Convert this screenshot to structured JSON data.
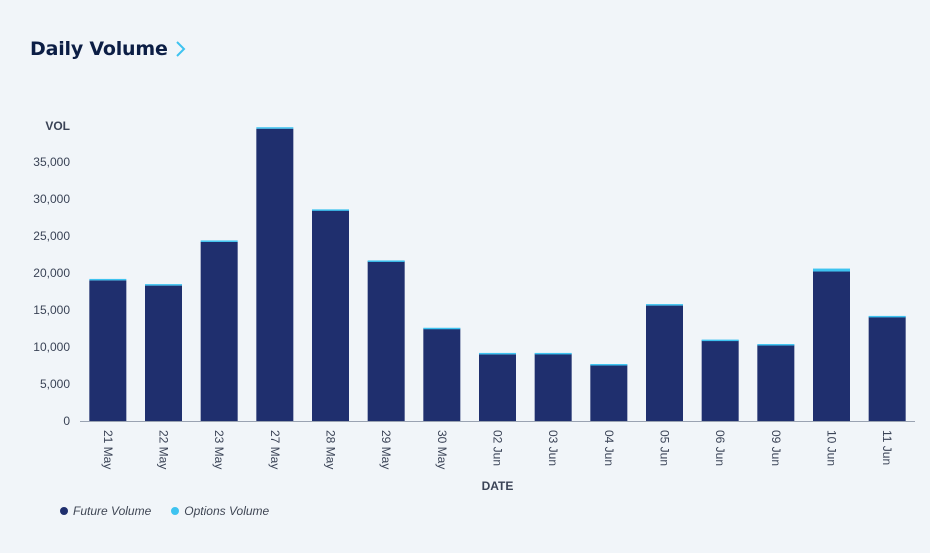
{
  "header": {
    "title": "Daily Volume",
    "chevron_icon": "chevron-right-icon"
  },
  "colors": {
    "future": "#1f2f6e",
    "options": "#3ec3f0",
    "title": "#0c1e45",
    "axis": "#3a4356"
  },
  "chart_data": {
    "type": "bar",
    "stacked": true,
    "ylabel": "VOL",
    "xlabel": "DATE",
    "ylim": [
      0,
      40000
    ],
    "yticks": [
      "0",
      "5,000",
      "10,000",
      "15,000",
      "20,000",
      "25,000",
      "30,000",
      "35,000"
    ],
    "ytick_values": [
      0,
      5000,
      10000,
      15000,
      20000,
      25000,
      30000,
      35000
    ],
    "categories": [
      "21 May",
      "22 May",
      "23 May",
      "27 May",
      "28 May",
      "29 May",
      "30 May",
      "02 Jun",
      "03 Jun",
      "04 Jun",
      "05 Jun",
      "06 Jun",
      "09 Jun",
      "10 Jun",
      "11 Jun"
    ],
    "series": [
      {
        "name": "Future Volume",
        "values": [
          19000,
          18300,
          24200,
          39500,
          28500,
          21600,
          12500,
          9000,
          9100,
          7600,
          15600,
          10900,
          10300,
          20200,
          14100
        ]
      },
      {
        "name": "Options Volume",
        "values": [
          200,
          200,
          200,
          200,
          100,
          100,
          100,
          200,
          100,
          100,
          200,
          100,
          100,
          400,
          100
        ]
      }
    ],
    "legend": "bottom-left"
  }
}
